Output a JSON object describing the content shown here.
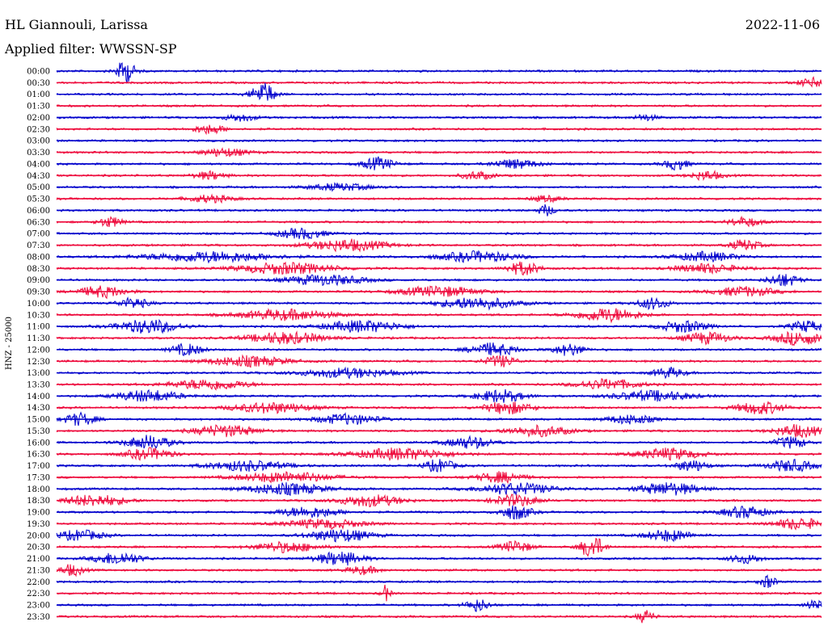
{
  "station": "HL Giannouli, Larissa",
  "date": "2022-11-06",
  "filter_text": "Applied filter: WWSSN-SP",
  "channel_label": "HNZ - 25000",
  "chart_data": {
    "type": "line",
    "title": "HL Giannouli, Larissa",
    "ylabel": "HNZ - 25000",
    "xlabel": "",
    "trace_colors": [
      "#0000cc",
      "#ee0a3c"
    ],
    "rows": [
      {
        "time": "00:00",
        "events": [
          [
            0.09,
            1.0,
            0.012
          ]
        ]
      },
      {
        "time": "00:30",
        "events": [
          [
            0.99,
            0.4,
            0.02
          ]
        ]
      },
      {
        "time": "01:00",
        "events": [
          [
            0.27,
            1.0,
            0.015
          ]
        ]
      },
      {
        "time": "01:30",
        "events": []
      },
      {
        "time": "02:00",
        "events": [
          [
            0.24,
            0.3,
            0.02
          ],
          [
            0.77,
            0.25,
            0.015
          ]
        ]
      },
      {
        "time": "02:30",
        "events": [
          [
            0.2,
            0.4,
            0.02
          ]
        ]
      },
      {
        "time": "03:00",
        "events": []
      },
      {
        "time": "03:30",
        "events": [
          [
            0.22,
            0.35,
            0.03
          ]
        ]
      },
      {
        "time": "04:00",
        "events": [
          [
            0.42,
            0.55,
            0.02
          ],
          [
            0.6,
            0.4,
            0.03
          ],
          [
            0.81,
            0.5,
            0.015
          ]
        ]
      },
      {
        "time": "04:30",
        "events": [
          [
            0.2,
            0.35,
            0.02
          ],
          [
            0.55,
            0.35,
            0.02
          ],
          [
            0.85,
            0.4,
            0.02
          ]
        ]
      },
      {
        "time": "05:00",
        "events": [
          [
            0.37,
            0.3,
            0.04
          ]
        ]
      },
      {
        "time": "05:30",
        "events": [
          [
            0.2,
            0.3,
            0.03
          ],
          [
            0.64,
            0.25,
            0.02
          ]
        ]
      },
      {
        "time": "06:00",
        "events": [
          [
            0.64,
            0.5,
            0.01
          ]
        ]
      },
      {
        "time": "06:30",
        "events": [
          [
            0.07,
            0.45,
            0.015
          ],
          [
            0.9,
            0.4,
            0.02
          ]
        ]
      },
      {
        "time": "07:00",
        "events": [
          [
            0.32,
            0.45,
            0.03
          ]
        ]
      },
      {
        "time": "07:30",
        "events": [
          [
            0.38,
            0.5,
            0.05
          ],
          [
            0.9,
            0.45,
            0.02
          ]
        ]
      },
      {
        "time": "08:00",
        "events": [
          [
            0.2,
            0.45,
            0.08
          ],
          [
            0.55,
            0.45,
            0.05
          ],
          [
            0.85,
            0.4,
            0.04
          ]
        ]
      },
      {
        "time": "08:30",
        "events": [
          [
            0.3,
            0.5,
            0.06
          ],
          [
            0.61,
            0.6,
            0.02
          ],
          [
            0.85,
            0.4,
            0.04
          ]
        ]
      },
      {
        "time": "09:00",
        "events": [
          [
            0.35,
            0.45,
            0.05
          ],
          [
            0.95,
            0.55,
            0.02
          ]
        ]
      },
      {
        "time": "09:30",
        "events": [
          [
            0.06,
            0.5,
            0.03
          ],
          [
            0.5,
            0.45,
            0.05
          ],
          [
            0.9,
            0.4,
            0.04
          ]
        ]
      },
      {
        "time": "10:00",
        "events": [
          [
            0.1,
            0.45,
            0.02
          ],
          [
            0.55,
            0.5,
            0.05
          ],
          [
            0.78,
            0.5,
            0.02
          ]
        ]
      },
      {
        "time": "10:30",
        "events": [
          [
            0.3,
            0.45,
            0.06
          ],
          [
            0.72,
            0.6,
            0.04
          ]
        ]
      },
      {
        "time": "11:00",
        "events": [
          [
            0.12,
            0.6,
            0.04
          ],
          [
            0.4,
            0.5,
            0.05
          ],
          [
            0.82,
            0.5,
            0.03
          ],
          [
            0.98,
            0.5,
            0.02
          ]
        ]
      },
      {
        "time": "11:30",
        "events": [
          [
            0.3,
            0.5,
            0.05
          ],
          [
            0.85,
            0.5,
            0.03
          ],
          [
            0.97,
            0.6,
            0.03
          ]
        ]
      },
      {
        "time": "12:00",
        "events": [
          [
            0.17,
            0.5,
            0.02
          ],
          [
            0.57,
            0.55,
            0.03
          ],
          [
            0.67,
            0.5,
            0.02
          ]
        ]
      },
      {
        "time": "12:30",
        "events": [
          [
            0.25,
            0.45,
            0.05
          ],
          [
            0.58,
            0.5,
            0.02
          ]
        ]
      },
      {
        "time": "13:00",
        "events": [
          [
            0.38,
            0.4,
            0.06
          ],
          [
            0.8,
            0.45,
            0.02
          ]
        ]
      },
      {
        "time": "13:30",
        "events": [
          [
            0.2,
            0.45,
            0.05
          ],
          [
            0.72,
            0.45,
            0.04
          ]
        ]
      },
      {
        "time": "14:00",
        "events": [
          [
            0.12,
            0.5,
            0.04
          ],
          [
            0.58,
            0.55,
            0.03
          ],
          [
            0.78,
            0.45,
            0.05
          ]
        ]
      },
      {
        "time": "14:30",
        "events": [
          [
            0.28,
            0.45,
            0.05
          ],
          [
            0.59,
            0.55,
            0.03
          ],
          [
            0.92,
            0.55,
            0.03
          ]
        ]
      },
      {
        "time": "15:00",
        "events": [
          [
            0.03,
            0.55,
            0.02
          ],
          [
            0.38,
            0.45,
            0.04
          ],
          [
            0.75,
            0.4,
            0.03
          ]
        ]
      },
      {
        "time": "15:30",
        "events": [
          [
            0.22,
            0.5,
            0.04
          ],
          [
            0.63,
            0.45,
            0.04
          ],
          [
            0.97,
            0.55,
            0.03
          ]
        ]
      },
      {
        "time": "16:00",
        "events": [
          [
            0.12,
            0.6,
            0.03
          ],
          [
            0.54,
            0.5,
            0.03
          ],
          [
            0.96,
            0.5,
            0.02
          ]
        ]
      },
      {
        "time": "16:30",
        "events": [
          [
            0.12,
            0.5,
            0.03
          ],
          [
            0.45,
            0.5,
            0.06
          ],
          [
            0.8,
            0.5,
            0.04
          ]
        ]
      },
      {
        "time": "17:00",
        "events": [
          [
            0.25,
            0.45,
            0.05
          ],
          [
            0.5,
            0.55,
            0.02
          ],
          [
            0.83,
            0.5,
            0.02
          ],
          [
            0.96,
            0.5,
            0.03
          ]
        ]
      },
      {
        "time": "17:30",
        "events": [
          [
            0.3,
            0.45,
            0.06
          ],
          [
            0.58,
            0.45,
            0.03
          ]
        ]
      },
      {
        "time": "18:00",
        "events": [
          [
            0.3,
            0.5,
            0.05
          ],
          [
            0.6,
            0.5,
            0.05
          ],
          [
            0.8,
            0.55,
            0.04
          ]
        ]
      },
      {
        "time": "18:30",
        "events": [
          [
            0.05,
            0.5,
            0.04
          ],
          [
            0.41,
            0.5,
            0.04
          ],
          [
            0.6,
            0.5,
            0.03
          ]
        ]
      },
      {
        "time": "19:00",
        "events": [
          [
            0.33,
            0.45,
            0.04
          ],
          [
            0.6,
            0.65,
            0.02
          ],
          [
            0.9,
            0.5,
            0.03
          ]
        ]
      },
      {
        "time": "19:30",
        "events": [
          [
            0.35,
            0.4,
            0.05
          ],
          [
            0.97,
            0.5,
            0.03
          ]
        ]
      },
      {
        "time": "20:00",
        "events": [
          [
            0.03,
            0.45,
            0.03
          ],
          [
            0.37,
            0.55,
            0.04
          ],
          [
            0.8,
            0.5,
            0.03
          ]
        ]
      },
      {
        "time": "20:30",
        "events": [
          [
            0.3,
            0.45,
            0.04
          ],
          [
            0.6,
            0.5,
            0.02
          ],
          [
            0.7,
            1.0,
            0.015
          ]
        ]
      },
      {
        "time": "21:00",
        "events": [
          [
            0.08,
            0.55,
            0.03
          ],
          [
            0.37,
            0.6,
            0.03
          ],
          [
            0.9,
            0.4,
            0.02
          ]
        ]
      },
      {
        "time": "21:30",
        "events": [
          [
            0.02,
            0.5,
            0.015
          ],
          [
            0.4,
            0.35,
            0.02
          ]
        ]
      },
      {
        "time": "22:00",
        "events": [
          [
            0.93,
            0.55,
            0.01
          ]
        ]
      },
      {
        "time": "22:30",
        "events": [
          [
            0.43,
            0.7,
            0.006
          ]
        ]
      },
      {
        "time": "23:00",
        "events": [
          [
            0.55,
            0.55,
            0.015
          ],
          [
            0.99,
            0.5,
            0.01
          ]
        ]
      },
      {
        "time": "23:30",
        "events": [
          [
            0.77,
            0.6,
            0.01
          ]
        ]
      }
    ]
  }
}
